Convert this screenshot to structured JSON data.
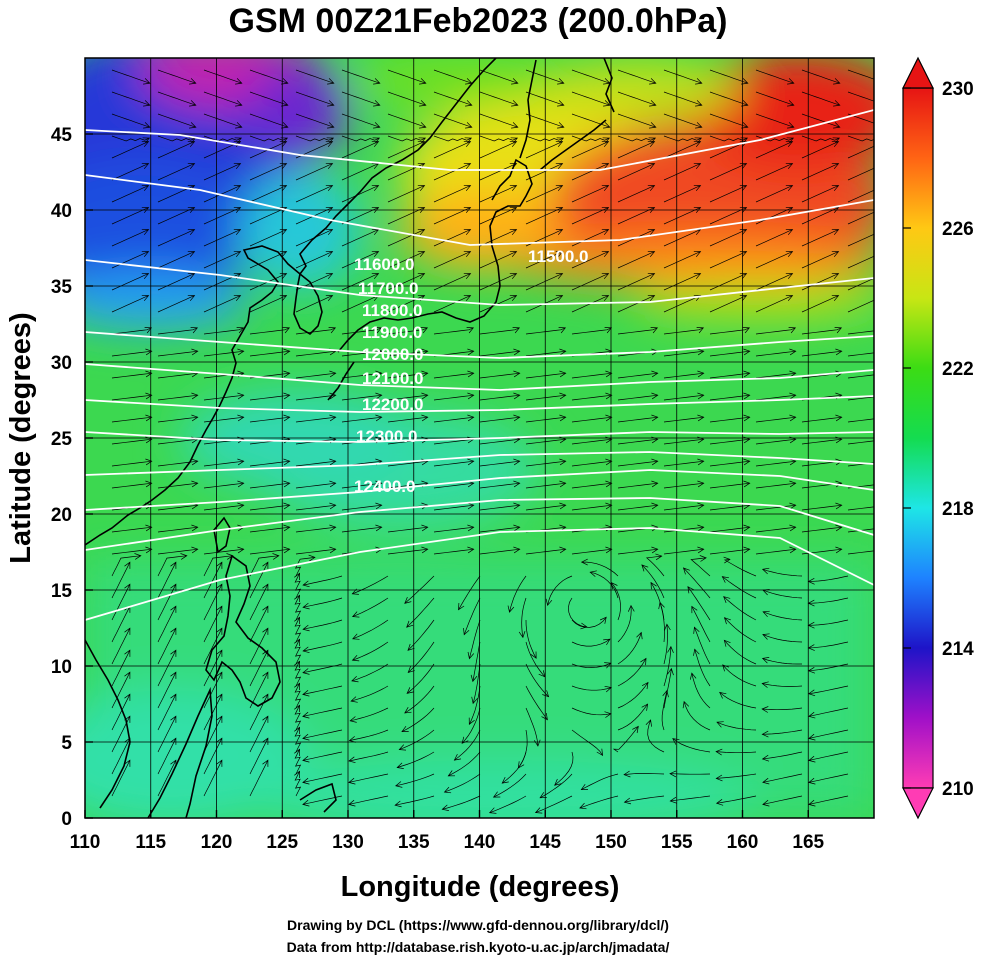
{
  "title": "GSM 00Z21Feb2023 (200.0hPa)",
  "xlabel": "Longitude (degrees)",
  "ylabel": "Latitude  (degrees)",
  "credits": [
    "Drawing by DCL (https://www.gfd-dennou.org/library/dcl/)",
    "Data from http://database.rish.kyoto-u.ac.jp/arch/jmadata/"
  ],
  "map_data": {
    "type": "heatmap",
    "lon_range": [
      110,
      170
    ],
    "lat_range": [
      0,
      50
    ],
    "lon_ticks": [
      110,
      115,
      120,
      125,
      130,
      135,
      140,
      145,
      150,
      155,
      160,
      165
    ],
    "lat_ticks": [
      0,
      5,
      10,
      15,
      20,
      25,
      30,
      35,
      40,
      45
    ],
    "colorbar": {
      "min": 210,
      "max": 230,
      "tick_values": [
        210,
        214,
        218,
        222,
        226,
        230
      ],
      "tick_labels": [
        "210",
        "214",
        "218",
        "222",
        "226",
        "230"
      ],
      "colors": [
        "#ff3cb4",
        "#a010c8",
        "#1e14c8",
        "#1e82ff",
        "#1ee6e6",
        "#14dc50",
        "#3cdc14",
        "#c8e614",
        "#ffc814",
        "#ff6414",
        "#e61414"
      ]
    },
    "contour_labels": [
      "11500.0",
      "11600.0",
      "11700.0",
      "11800.0",
      "11900.0",
      "12000.0",
      "12100.0",
      "12200.0",
      "12300.0",
      "12400.0"
    ],
    "colors": {
      "contour": "#ffffff",
      "coast": "#000000",
      "streamline": "#000000",
      "grid": "#000000"
    }
  }
}
